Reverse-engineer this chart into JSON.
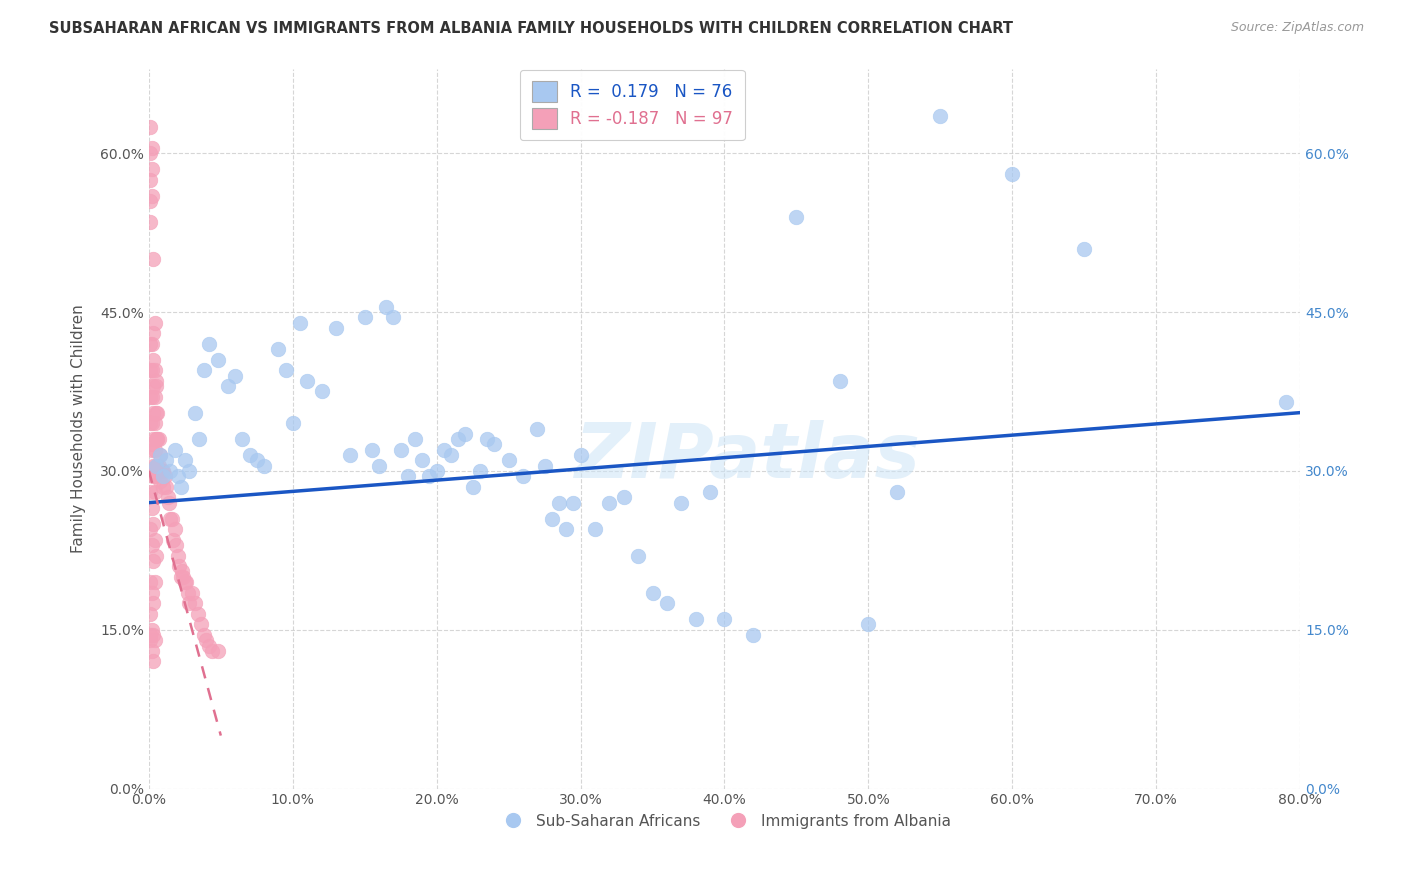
{
  "title": "SUBSAHARAN AFRICAN VS IMMIGRANTS FROM ALBANIA FAMILY HOUSEHOLDS WITH CHILDREN CORRELATION CHART",
  "source": "Source: ZipAtlas.com",
  "ylabel": "Family Households with Children",
  "r_blue": "0.179",
  "n_blue": "76",
  "r_pink": "-0.187",
  "n_pink": "97",
  "xlim": [
    0.0,
    0.8
  ],
  "ylim": [
    0.0,
    0.68
  ],
  "xticks": [
    0.0,
    0.1,
    0.2,
    0.3,
    0.4,
    0.5,
    0.6,
    0.7,
    0.8
  ],
  "yticks": [
    0.0,
    0.15,
    0.3,
    0.45,
    0.6
  ],
  "xtick_labels": [
    "0.0%",
    "10.0%",
    "20.0%",
    "30.0%",
    "40.0%",
    "50.0%",
    "60.0%",
    "70.0%",
    "80.0%"
  ],
  "ytick_labels": [
    "0.0%",
    "15.0%",
    "30.0%",
    "45.0%",
    "60.0%"
  ],
  "blue_color": "#a8c8f0",
  "pink_color": "#f4a0b8",
  "blue_line_color": "#1a56c4",
  "pink_line_color": "#e07090",
  "watermark": "ZIPatlas",
  "legend_label_blue": "Sub-Saharan Africans",
  "legend_label_pink": "Immigrants from Albania",
  "blue_x": [
    0.005,
    0.008,
    0.01,
    0.012,
    0.015,
    0.018,
    0.02,
    0.022,
    0.025,
    0.028,
    0.032,
    0.035,
    0.038,
    0.042,
    0.048,
    0.055,
    0.06,
    0.065,
    0.07,
    0.075,
    0.08,
    0.09,
    0.095,
    0.1,
    0.105,
    0.11,
    0.12,
    0.13,
    0.14,
    0.15,
    0.155,
    0.16,
    0.165,
    0.17,
    0.175,
    0.18,
    0.185,
    0.19,
    0.195,
    0.2,
    0.205,
    0.21,
    0.215,
    0.22,
    0.225,
    0.23,
    0.235,
    0.24,
    0.25,
    0.26,
    0.27,
    0.275,
    0.28,
    0.285,
    0.29,
    0.295,
    0.3,
    0.31,
    0.32,
    0.33,
    0.34,
    0.35,
    0.36,
    0.37,
    0.38,
    0.39,
    0.4,
    0.42,
    0.45,
    0.48,
    0.5,
    0.52,
    0.55,
    0.6,
    0.65,
    0.79
  ],
  "blue_y": [
    0.305,
    0.315,
    0.295,
    0.31,
    0.3,
    0.32,
    0.295,
    0.285,
    0.31,
    0.3,
    0.355,
    0.33,
    0.395,
    0.42,
    0.405,
    0.38,
    0.39,
    0.33,
    0.315,
    0.31,
    0.305,
    0.415,
    0.395,
    0.345,
    0.44,
    0.385,
    0.375,
    0.435,
    0.315,
    0.445,
    0.32,
    0.305,
    0.455,
    0.445,
    0.32,
    0.295,
    0.33,
    0.31,
    0.295,
    0.3,
    0.32,
    0.315,
    0.33,
    0.335,
    0.285,
    0.3,
    0.33,
    0.325,
    0.31,
    0.295,
    0.34,
    0.305,
    0.255,
    0.27,
    0.245,
    0.27,
    0.315,
    0.245,
    0.27,
    0.275,
    0.22,
    0.185,
    0.175,
    0.27,
    0.16,
    0.28,
    0.16,
    0.145,
    0.54,
    0.385,
    0.155,
    0.28,
    0.635,
    0.58,
    0.51,
    0.365
  ],
  "pink_x": [
    0.001,
    0.001,
    0.001,
    0.001,
    0.001,
    0.001,
    0.001,
    0.001,
    0.002,
    0.002,
    0.002,
    0.002,
    0.002,
    0.002,
    0.002,
    0.003,
    0.003,
    0.003,
    0.003,
    0.003,
    0.003,
    0.003,
    0.004,
    0.004,
    0.004,
    0.004,
    0.004,
    0.005,
    0.005,
    0.005,
    0.005,
    0.006,
    0.006,
    0.006,
    0.007,
    0.007,
    0.008,
    0.008,
    0.009,
    0.01,
    0.01,
    0.011,
    0.012,
    0.013,
    0.014,
    0.015,
    0.016,
    0.017,
    0.018,
    0.019,
    0.02,
    0.021,
    0.022,
    0.023,
    0.024,
    0.025,
    0.026,
    0.027,
    0.028,
    0.03,
    0.032,
    0.034,
    0.036,
    0.038,
    0.04,
    0.042,
    0.044,
    0.048,
    0.001,
    0.002,
    0.003,
    0.004,
    0.005,
    0.006,
    0.002,
    0.003,
    0.004,
    0.001,
    0.002,
    0.003,
    0.004,
    0.005,
    0.001,
    0.002,
    0.003,
    0.004,
    0.001,
    0.002,
    0.003,
    0.001,
    0.002,
    0.003,
    0.004,
    0.001,
    0.002,
    0.003,
    0.001
  ],
  "pink_y": [
    0.6,
    0.575,
    0.555,
    0.535,
    0.42,
    0.395,
    0.37,
    0.345,
    0.605,
    0.585,
    0.42,
    0.395,
    0.37,
    0.345,
    0.32,
    0.43,
    0.405,
    0.38,
    0.355,
    0.33,
    0.305,
    0.295,
    0.395,
    0.37,
    0.345,
    0.32,
    0.295,
    0.38,
    0.355,
    0.33,
    0.305,
    0.355,
    0.33,
    0.305,
    0.33,
    0.305,
    0.315,
    0.29,
    0.3,
    0.3,
    0.285,
    0.295,
    0.285,
    0.275,
    0.27,
    0.255,
    0.255,
    0.235,
    0.245,
    0.23,
    0.22,
    0.21,
    0.2,
    0.205,
    0.2,
    0.195,
    0.195,
    0.185,
    0.175,
    0.185,
    0.175,
    0.165,
    0.155,
    0.145,
    0.14,
    0.135,
    0.13,
    0.13,
    0.625,
    0.56,
    0.5,
    0.44,
    0.385,
    0.33,
    0.325,
    0.3,
    0.28,
    0.28,
    0.265,
    0.25,
    0.235,
    0.22,
    0.245,
    0.23,
    0.215,
    0.195,
    0.195,
    0.185,
    0.175,
    0.165,
    0.15,
    0.145,
    0.14,
    0.14,
    0.13,
    0.12,
    0.145
  ]
}
